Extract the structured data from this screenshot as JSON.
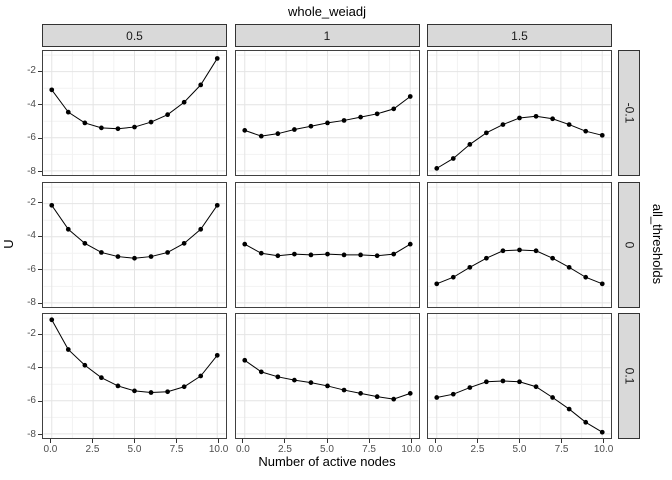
{
  "title": "whole_weiadj",
  "axes": {
    "x_label": "Number of active nodes",
    "y_label": "U"
  },
  "facet": {
    "outer_row_label": "all_thresholds",
    "col_labels": [
      "0.5",
      "1",
      "1.5"
    ],
    "row_labels": [
      "-0.1",
      "0",
      "0.1"
    ]
  },
  "colors": {
    "strip_fill": "#d9d9d9",
    "strip_border": "#333333",
    "panel_border": "#404040",
    "grid_major": "#e4e4e4",
    "grid_minor": "#f2f2f2",
    "line": "#000000",
    "point": "#000000",
    "axis_text": "#4d4d4d",
    "title_text": "#000000"
  },
  "chart_data": {
    "type": "line",
    "title": "whole_weiadj",
    "xlabel": "Number of active nodes",
    "ylabel": "U",
    "facet_col_variable": "whole_weiadj",
    "facet_row_variable": "all_thresholds",
    "col_labels": [
      "0.5",
      "1",
      "1.5"
    ],
    "row_labels": [
      "-0.1",
      "0",
      "0.1"
    ],
    "x": [
      0,
      1,
      2,
      3,
      4,
      5,
      6,
      7,
      8,
      9,
      10
    ],
    "x_ticks": [
      "0.0",
      "2.5",
      "5.0",
      "7.5",
      "10.0"
    ],
    "x_tick_values": [
      0,
      2.5,
      5,
      7.5,
      10
    ],
    "x_minor_values": [
      1.25,
      3.75,
      6.25,
      8.75
    ],
    "y_ticks": [
      "-2",
      "-4",
      "-6",
      "-8"
    ],
    "y_tick_values": [
      -2,
      -4,
      -6,
      -8
    ],
    "y_minor_values": [
      -1,
      -3,
      -5,
      -7
    ],
    "xlim": [
      -0.5,
      10.5
    ],
    "ylim": [
      -8.25,
      -0.75
    ],
    "grid": true,
    "legend": "none",
    "panels": [
      {
        "row": "-0.1",
        "col": "0.5",
        "y": [
          -3.1,
          -4.45,
          -5.1,
          -5.4,
          -5.45,
          -5.35,
          -5.05,
          -4.6,
          -3.85,
          -2.8,
          -1.2
        ]
      },
      {
        "row": "-0.1",
        "col": "1",
        "y": [
          -5.55,
          -5.9,
          -5.75,
          -5.5,
          -5.3,
          -5.1,
          -4.95,
          -4.75,
          -4.55,
          -4.25,
          -3.5
        ]
      },
      {
        "row": "-0.1",
        "col": "1.5",
        "y": [
          -7.85,
          -7.25,
          -6.4,
          -5.7,
          -5.2,
          -4.8,
          -4.7,
          -4.85,
          -5.2,
          -5.6,
          -5.85
        ]
      },
      {
        "row": "0",
        "col": "0.5",
        "y": [
          -2.1,
          -3.55,
          -4.4,
          -4.95,
          -5.2,
          -5.3,
          -5.2,
          -4.95,
          -4.4,
          -3.55,
          -2.1
        ]
      },
      {
        "row": "0",
        "col": "1",
        "y": [
          -4.45,
          -5.0,
          -5.15,
          -5.05,
          -5.1,
          -5.05,
          -5.1,
          -5.1,
          -5.15,
          -5.05,
          -4.45
        ]
      },
      {
        "row": "0",
        "col": "1.5",
        "y": [
          -6.85,
          -6.45,
          -5.85,
          -5.3,
          -4.85,
          -4.8,
          -4.85,
          -5.3,
          -5.85,
          -6.45,
          -6.85
        ]
      },
      {
        "row": "0.1",
        "col": "0.5",
        "y": [
          -1.1,
          -2.9,
          -3.85,
          -4.6,
          -5.1,
          -5.4,
          -5.5,
          -5.45,
          -5.15,
          -4.5,
          -3.25
        ]
      },
      {
        "row": "0.1",
        "col": "1",
        "y": [
          -3.55,
          -4.25,
          -4.55,
          -4.75,
          -4.9,
          -5.1,
          -5.35,
          -5.55,
          -5.75,
          -5.9,
          -5.55
        ]
      },
      {
        "row": "0.1",
        "col": "1.5",
        "y": [
          -5.8,
          -5.6,
          -5.2,
          -4.85,
          -4.8,
          -4.85,
          -5.15,
          -5.8,
          -6.5,
          -7.3,
          -7.9
        ]
      }
    ]
  }
}
